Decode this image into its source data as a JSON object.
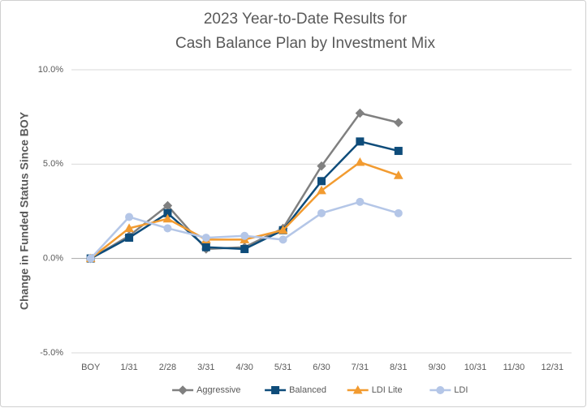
{
  "chart_data": {
    "type": "line",
    "title": [
      "2023 Year-to-Date Results for",
      "Cash Balance Plan by Investment Mix"
    ],
    "y_label": "Change in Funded Status Since BOY",
    "categories": [
      "BOY",
      "1/31",
      "2/28",
      "3/31",
      "4/30",
      "5/31",
      "6/30",
      "7/31",
      "8/31",
      "9/30",
      "10/31",
      "11/30",
      "12/31"
    ],
    "series": [
      {
        "name": "Aggressive",
        "color": "#808080",
        "marker": "diamond",
        "values": [
          0,
          1.2,
          2.8,
          0.5,
          0.6,
          1.6,
          4.9,
          7.7,
          7.2,
          null,
          null,
          null,
          null
        ]
      },
      {
        "name": "Balanced",
        "color": "#0e4c7a",
        "marker": "square",
        "values": [
          0,
          1.1,
          2.4,
          0.6,
          0.5,
          1.5,
          4.1,
          6.2,
          5.7,
          null,
          null,
          null,
          null
        ]
      },
      {
        "name": "LDI Lite",
        "color": "#f29b30",
        "marker": "triangle",
        "values": [
          0,
          1.6,
          2.1,
          1.0,
          1.0,
          1.5,
          3.6,
          5.1,
          4.4,
          null,
          null,
          null,
          null
        ]
      },
      {
        "name": "LDI",
        "color": "#b4c6e7",
        "marker": "circle",
        "values": [
          0,
          2.2,
          1.6,
          1.1,
          1.2,
          1.0,
          2.4,
          3.0,
          2.4,
          null,
          null,
          null,
          null
        ]
      }
    ],
    "ylim": [
      -5,
      10
    ],
    "yticks": [
      {
        "value": -5,
        "label": "-5.0%"
      },
      {
        "value": 0,
        "label": "0.0%"
      },
      {
        "value": 5,
        "label": "5.0%"
      },
      {
        "value": 10,
        "label": "10.0%"
      }
    ],
    "grid": true,
    "legend": "bottom"
  }
}
